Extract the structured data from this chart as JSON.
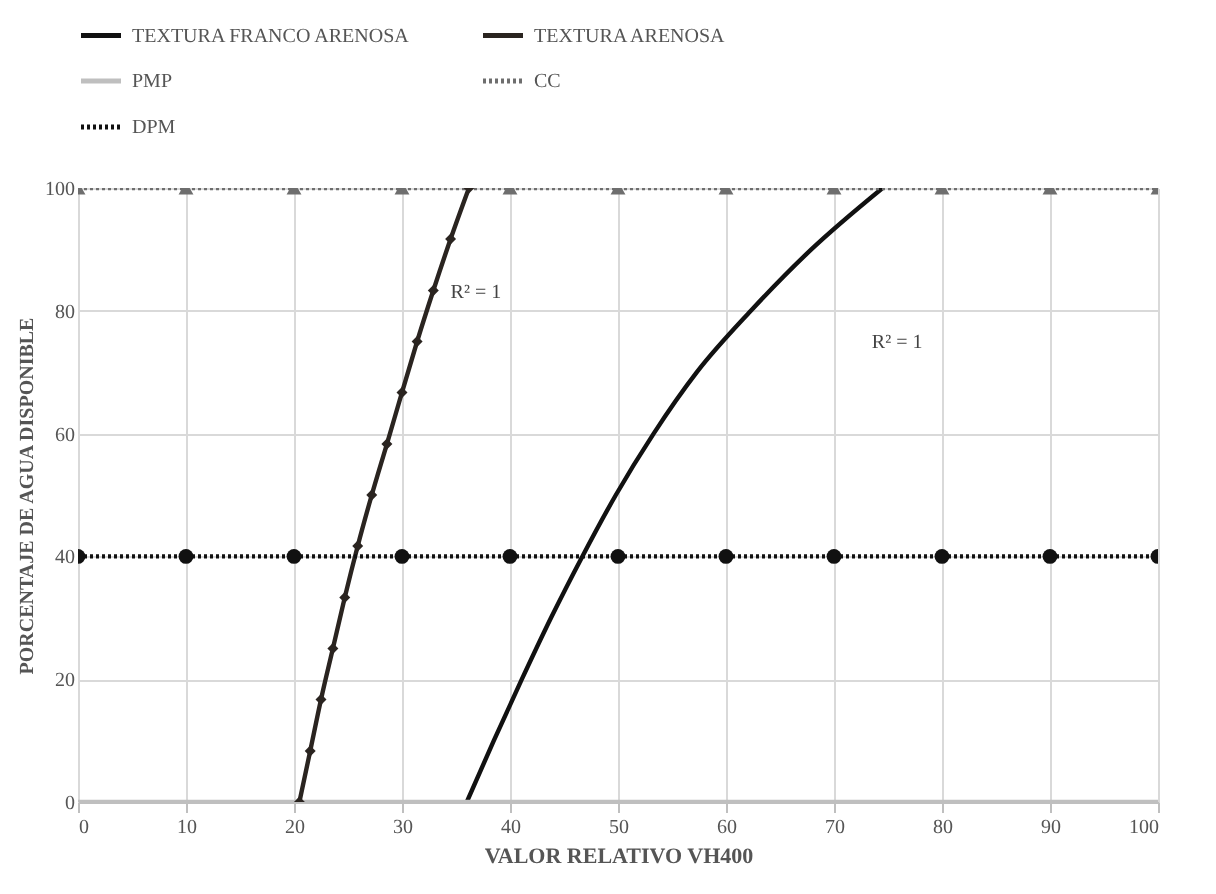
{
  "chart_data": {
    "type": "line",
    "xlabel": "VALOR RELATIVO VH400",
    "ylabel": "PORCENTAJE DE AGUA DISPONIBLE",
    "xlim": [
      0,
      100
    ],
    "ylim": [
      0,
      100
    ],
    "xticks": [
      0,
      10,
      20,
      30,
      40,
      50,
      60,
      70,
      80,
      90,
      100
    ],
    "yticks": [
      0,
      20,
      40,
      60,
      80,
      100
    ],
    "grid": true,
    "legend": "top",
    "series": [
      {
        "name": "TEXTURA FRANCO ARENOSA",
        "color": "#111111",
        "marker": "none",
        "line_style": "solid",
        "x": [
          36.0,
          38.5,
          41.1,
          43.8,
          46.7,
          49.8,
          53.3,
          57.3,
          62.3,
          67.9,
          74.5
        ],
        "values": [
          0,
          10,
          20,
          30,
          40,
          50,
          60,
          70,
          80,
          90,
          100
        ]
      },
      {
        "name": "TEXTURA ARENOSA",
        "color": "#2a2420",
        "marker": "diamond",
        "line_style": "solid",
        "x": [
          20.5,
          21.5,
          22.5,
          23.6,
          24.7,
          25.9,
          27.2,
          28.6,
          30.0,
          31.4,
          32.9,
          34.5,
          36.2
        ],
        "values": [
          0,
          8.3,
          16.7,
          25,
          33.3,
          41.7,
          50,
          58.3,
          66.7,
          75,
          83.3,
          91.7,
          100
        ]
      },
      {
        "name": "PMP",
        "color": "#bfbfbf",
        "marker": "none",
        "line_style": "solid",
        "x": [
          0,
          100
        ],
        "values": [
          0,
          0
        ]
      },
      {
        "name": "CC",
        "color": "#6e6e6e",
        "marker": "triangle",
        "line_style": "dotted",
        "x": [
          0,
          10,
          20,
          30,
          40,
          50,
          60,
          70,
          80,
          90,
          100
        ],
        "values": [
          100,
          100,
          100,
          100,
          100,
          100,
          100,
          100,
          100,
          100,
          100
        ]
      },
      {
        "name": "DPM",
        "color": "#111111",
        "marker": "circle",
        "line_style": "dotted",
        "x": [
          0,
          10,
          20,
          30,
          40,
          50,
          60,
          70,
          80,
          90,
          100
        ],
        "values": [
          40,
          40,
          40,
          40,
          40,
          40,
          40,
          40,
          40,
          40,
          40
        ]
      }
    ],
    "annotations": [
      "R² = 1",
      "R² = 1"
    ]
  }
}
